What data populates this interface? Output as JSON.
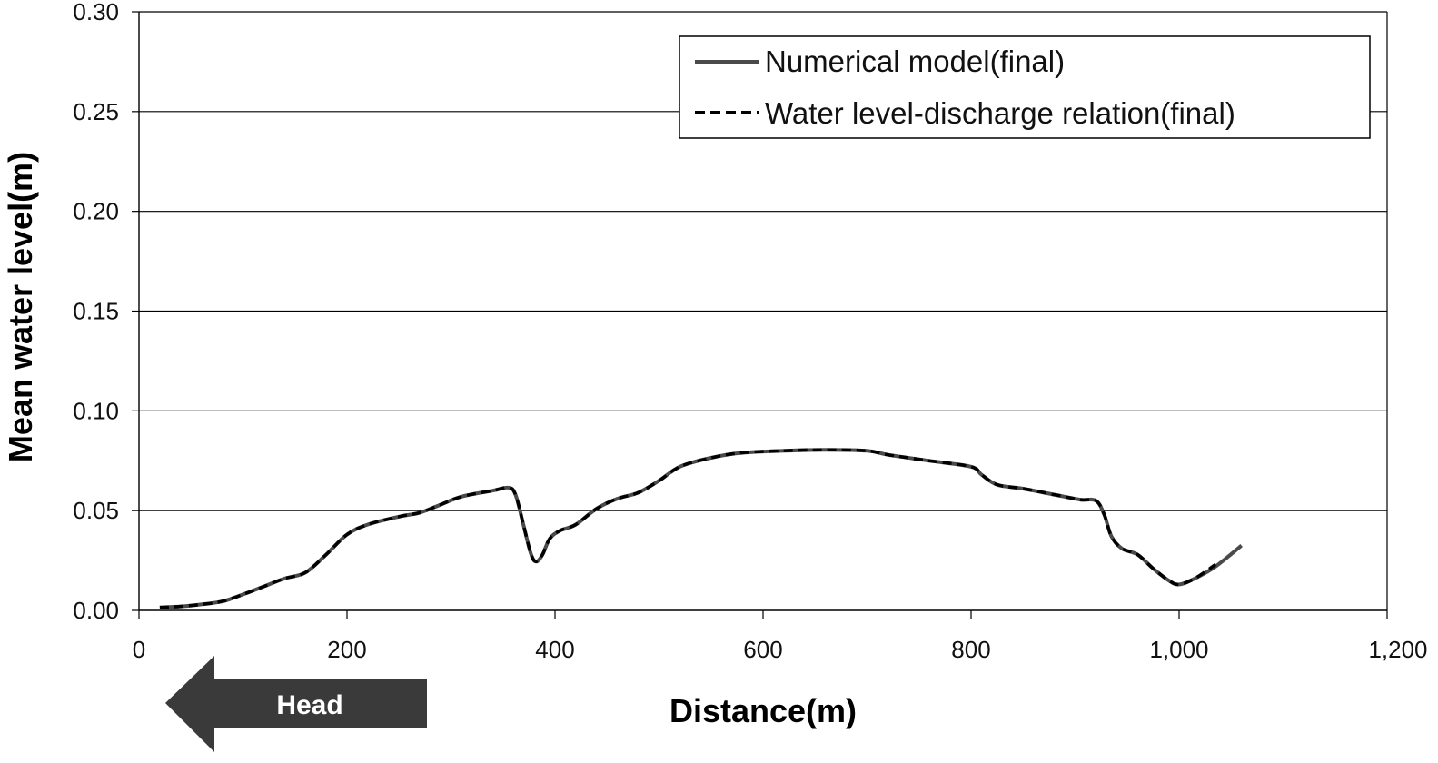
{
  "chart_data": {
    "type": "line",
    "title": "",
    "xlabel": "Distance(m)",
    "ylabel": "Mean water level(m)",
    "xlim": [
      0,
      1200
    ],
    "ylim": [
      0,
      0.3
    ],
    "xticks": [
      0,
      200,
      400,
      600,
      800,
      1000,
      1200
    ],
    "xtick_labels": [
      "0",
      "200",
      "400",
      "600",
      "800",
      "1,000",
      "1,200"
    ],
    "yticks": [
      0,
      0.05,
      0.1,
      0.15,
      0.2,
      0.25,
      0.3
    ],
    "ytick_labels": [
      "0.00",
      "0.05",
      "0.10",
      "0.15",
      "0.20",
      "0.25",
      "0.30"
    ],
    "grid": "horizontal",
    "legend_position": "top-right",
    "series": [
      {
        "name": "Numerical model(final)",
        "style": "solid",
        "color": "#4a4a4a",
        "points": [
          [
            20,
            0.0015
          ],
          [
            40,
            0.002
          ],
          [
            60,
            0.003
          ],
          [
            80,
            0.0045
          ],
          [
            100,
            0.008
          ],
          [
            120,
            0.012
          ],
          [
            140,
            0.016
          ],
          [
            160,
            0.019
          ],
          [
            180,
            0.028
          ],
          [
            200,
            0.038
          ],
          [
            220,
            0.043
          ],
          [
            250,
            0.047
          ],
          [
            270,
            0.049
          ],
          [
            290,
            0.053
          ],
          [
            310,
            0.057
          ],
          [
            340,
            0.06
          ],
          [
            355,
            0.0615
          ],
          [
            362,
            0.058
          ],
          [
            370,
            0.042
          ],
          [
            377,
            0.028
          ],
          [
            382,
            0.0245
          ],
          [
            388,
            0.028
          ],
          [
            395,
            0.036
          ],
          [
            405,
            0.04
          ],
          [
            420,
            0.043
          ],
          [
            440,
            0.051
          ],
          [
            460,
            0.056
          ],
          [
            480,
            0.059
          ],
          [
            500,
            0.065
          ],
          [
            520,
            0.072
          ],
          [
            550,
            0.0765
          ],
          [
            580,
            0.079
          ],
          [
            620,
            0.08
          ],
          [
            660,
            0.0805
          ],
          [
            700,
            0.08
          ],
          [
            720,
            0.078
          ],
          [
            760,
            0.075
          ],
          [
            800,
            0.072
          ],
          [
            810,
            0.068
          ],
          [
            825,
            0.063
          ],
          [
            850,
            0.061
          ],
          [
            880,
            0.058
          ],
          [
            905,
            0.0555
          ],
          [
            920,
            0.055
          ],
          [
            928,
            0.048
          ],
          [
            935,
            0.037
          ],
          [
            945,
            0.031
          ],
          [
            960,
            0.028
          ],
          [
            975,
            0.021
          ],
          [
            990,
            0.015
          ],
          [
            1000,
            0.013
          ],
          [
            1015,
            0.016
          ],
          [
            1035,
            0.022
          ],
          [
            1060,
            0.0325
          ]
        ]
      },
      {
        "name": "Water level-discharge relation(final)",
        "style": "dashed",
        "color": "#000000",
        "points": [
          [
            20,
            0.0015
          ],
          [
            40,
            0.002
          ],
          [
            60,
            0.003
          ],
          [
            80,
            0.0045
          ],
          [
            100,
            0.008
          ],
          [
            120,
            0.012
          ],
          [
            140,
            0.016
          ],
          [
            160,
            0.019
          ],
          [
            180,
            0.028
          ],
          [
            200,
            0.038
          ],
          [
            220,
            0.043
          ],
          [
            250,
            0.047
          ],
          [
            270,
            0.049
          ],
          [
            290,
            0.053
          ],
          [
            310,
            0.057
          ],
          [
            340,
            0.06
          ],
          [
            355,
            0.0615
          ],
          [
            362,
            0.058
          ],
          [
            370,
            0.042
          ],
          [
            377,
            0.028
          ],
          [
            382,
            0.0245
          ],
          [
            388,
            0.028
          ],
          [
            395,
            0.036
          ],
          [
            405,
            0.04
          ],
          [
            420,
            0.043
          ],
          [
            440,
            0.051
          ],
          [
            460,
            0.056
          ],
          [
            480,
            0.059
          ],
          [
            500,
            0.065
          ],
          [
            520,
            0.072
          ],
          [
            550,
            0.0765
          ],
          [
            580,
            0.079
          ],
          [
            620,
            0.08
          ],
          [
            660,
            0.0805
          ],
          [
            700,
            0.08
          ],
          [
            720,
            0.078
          ],
          [
            760,
            0.075
          ],
          [
            800,
            0.072
          ],
          [
            810,
            0.068
          ],
          [
            825,
            0.063
          ],
          [
            850,
            0.061
          ],
          [
            880,
            0.058
          ],
          [
            905,
            0.0555
          ],
          [
            920,
            0.055
          ],
          [
            928,
            0.048
          ],
          [
            935,
            0.037
          ],
          [
            945,
            0.031
          ],
          [
            960,
            0.028
          ],
          [
            975,
            0.021
          ],
          [
            990,
            0.015
          ],
          [
            1000,
            0.013
          ],
          [
            1015,
            0.016
          ],
          [
            1035,
            0.023
          ]
        ]
      }
    ],
    "annotations": [
      {
        "text": "Head",
        "shape": "left-arrow",
        "color": "#3a3a3a"
      }
    ]
  }
}
